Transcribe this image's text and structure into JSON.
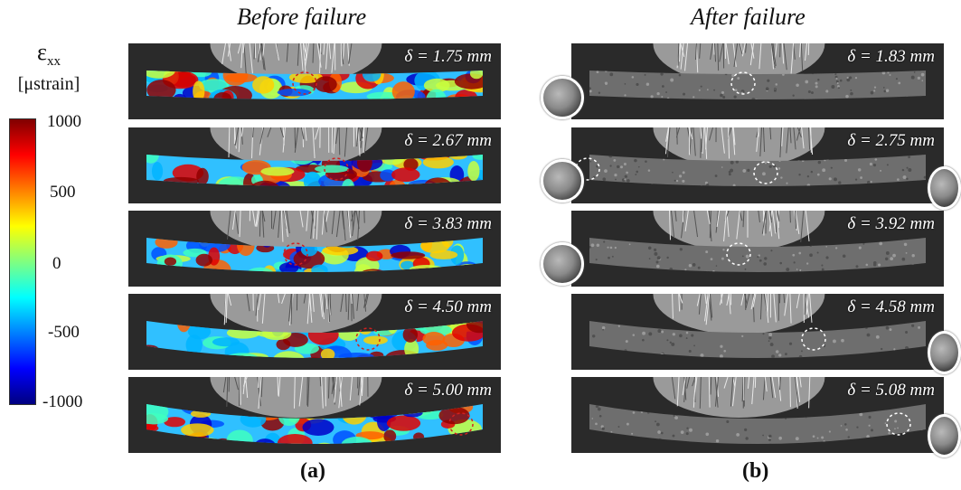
{
  "headings": {
    "left": "Before failure",
    "right": "After failure"
  },
  "colorbar": {
    "symbol": "ε",
    "subscript": "xx",
    "unit": "[μstrain]",
    "ticks": [
      "1000",
      "500",
      "0",
      "-500",
      "-1000"
    ],
    "colors": [
      "#800000",
      "#ff0000",
      "#ff8000",
      "#ffff00",
      "#80ff80",
      "#00ffff",
      "#0080ff",
      "#0000ff",
      "#000080"
    ]
  },
  "panels": {
    "before": [
      {
        "label": "δ = 1.75 mm"
      },
      {
        "label": "δ = 2.67 mm"
      },
      {
        "label": "δ = 3.83 mm"
      },
      {
        "label": "δ = 4.50 mm"
      },
      {
        "label": "δ = 5.00 mm"
      }
    ],
    "after": [
      {
        "label": "δ = 1.83 mm"
      },
      {
        "label": "δ = 2.75 mm"
      },
      {
        "label": "δ = 3.92 mm"
      },
      {
        "label": "δ = 4.58 mm"
      },
      {
        "label": "δ = 5.08 mm"
      }
    ]
  },
  "subfigure_labels": {
    "left": "(a)",
    "right": "(b)"
  }
}
